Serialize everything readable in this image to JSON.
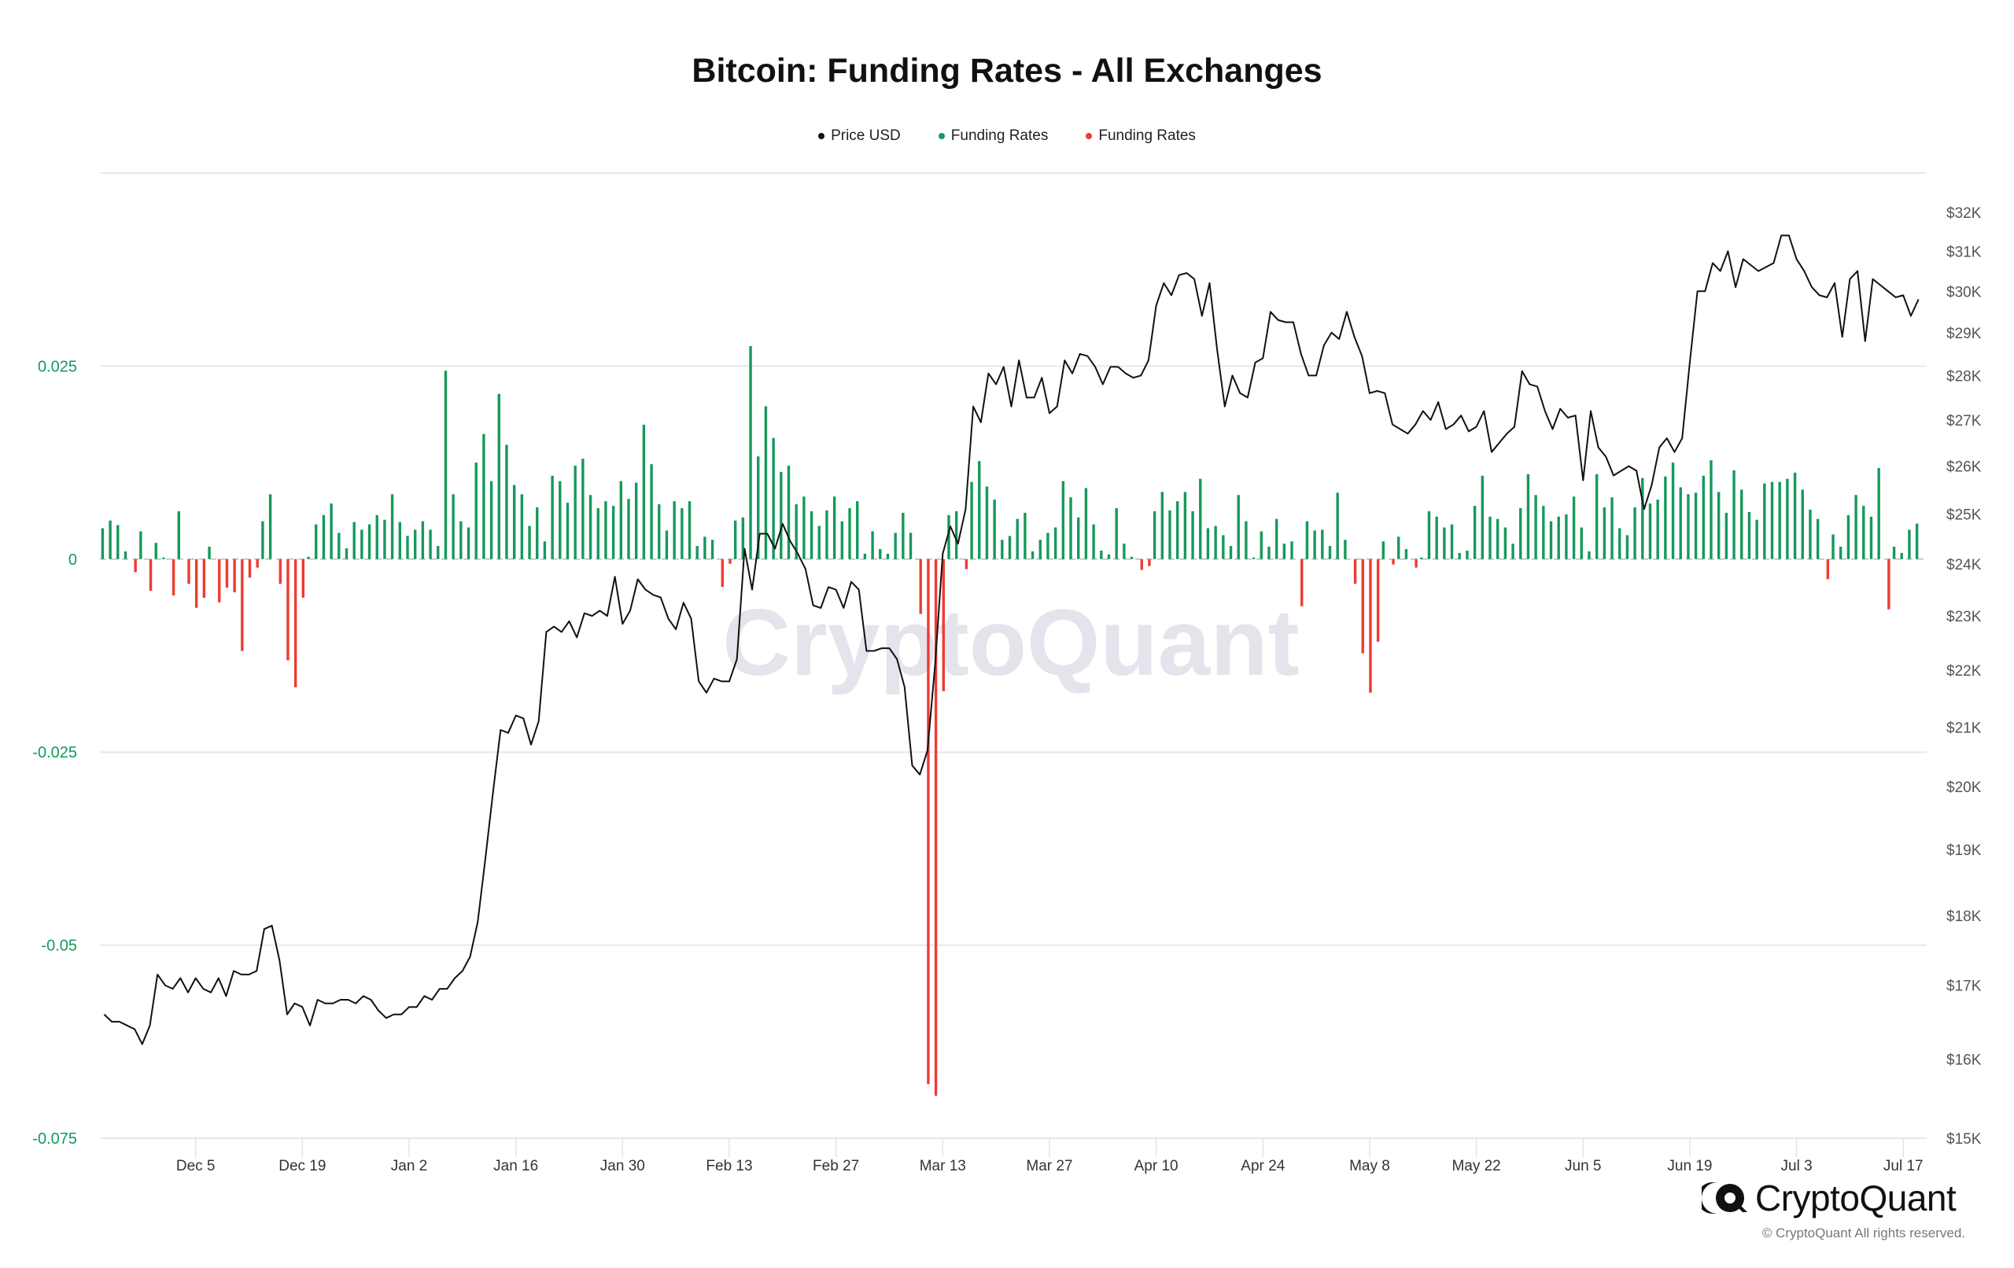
{
  "chart_data": {
    "type": "bar+line",
    "title": "Bitcoin: Funding Rates - All Exchanges",
    "legend": [
      {
        "label": "Price USD",
        "color": "#111111"
      },
      {
        "label": "Funding Rates",
        "color": "#16995b"
      },
      {
        "label": "Funding Rates",
        "color": "#ef3b31"
      }
    ],
    "legend_position": "top-center",
    "y_left": {
      "range": [
        -0.075,
        0.05
      ],
      "ticks": [
        0.025,
        0,
        -0.025,
        -0.05,
        -0.075
      ],
      "tick_labels": [
        "0.025",
        "0",
        "-0.025",
        "-0.05",
        "-0.075"
      ]
    },
    "y_right": {
      "scale": "log",
      "range": [
        15,
        33.5
      ],
      "ticks": [
        15,
        16,
        17,
        18,
        19,
        20,
        21,
        22,
        23,
        24,
        25,
        26,
        27,
        28,
        29,
        30,
        31,
        32
      ],
      "tick_labels": [
        "$15K",
        "$16K",
        "$17K",
        "$18K",
        "$19K",
        "$20K",
        "$21K",
        "$22K",
        "$23K",
        "$24K",
        "$25K",
        "$26K",
        "$27K",
        "$28K",
        "$29K",
        "$30K",
        "$31K",
        "$32K"
      ]
    },
    "x": {
      "unit": "day index",
      "range": [
        0,
        239.5
      ],
      "ticks": [
        {
          "label": "Dec 5",
          "day": 12
        },
        {
          "label": "Dec 19",
          "day": 26
        },
        {
          "label": "Jan 2",
          "day": 40
        },
        {
          "label": "Jan 16",
          "day": 54
        },
        {
          "label": "Jan 30",
          "day": 68
        },
        {
          "label": "Feb 13",
          "day": 82
        },
        {
          "label": "Feb 27",
          "day": 96
        },
        {
          "label": "Mar 13",
          "day": 110
        },
        {
          "label": "Mar 27",
          "day": 124
        },
        {
          "label": "Apr 10",
          "day": 138
        },
        {
          "label": "Apr 24",
          "day": 152
        },
        {
          "label": "May 8",
          "day": 166
        },
        {
          "label": "May 22",
          "day": 180
        },
        {
          "label": "Jun 5",
          "day": 194
        },
        {
          "label": "Jun 19",
          "day": 208
        },
        {
          "label": "Jul 3",
          "day": 222
        },
        {
          "label": "Jul 17",
          "day": 236
        }
      ]
    },
    "grid": true,
    "funding_rates": [
      0.004,
      0.005,
      0.0044,
      0.001,
      -0.0017,
      0.0036,
      -0.0041,
      0.0021,
      0.0002,
      -0.0047,
      0.0062,
      -0.0032,
      -0.0063,
      -0.005,
      0.0016,
      -0.0056,
      -0.0037,
      -0.0043,
      -0.0119,
      -0.0024,
      -0.0011,
      0.0049,
      0.0084,
      -0.0032,
      -0.0131,
      -0.0166,
      -0.005,
      0.0003,
      0.0045,
      0.0057,
      0.0072,
      0.0034,
      0.0014,
      0.0048,
      0.0038,
      0.0045,
      0.0057,
      0.0051,
      0.0084,
      0.0048,
      0.003,
      0.0038,
      0.0049,
      0.0038,
      0.0017,
      0.0244,
      0.0084,
      0.0049,
      0.0041,
      0.0125,
      0.0162,
      0.0101,
      0.0214,
      0.0148,
      0.0096,
      0.0084,
      0.0043,
      0.0067,
      0.0023,
      0.0108,
      0.0101,
      0.0073,
      0.0121,
      0.013,
      0.0083,
      0.0066,
      0.0075,
      0.0069,
      0.0101,
      0.0078,
      0.0099,
      0.0174,
      0.0123,
      0.0071,
      0.0037,
      0.0075,
      0.0066,
      0.0075,
      0.0017,
      0.0029,
      0.0025,
      -0.0036,
      -0.0006,
      0.005,
      0.0054,
      0.0276,
      0.0133,
      0.0198,
      0.0157,
      0.0113,
      0.0121,
      0.0071,
      0.0081,
      0.0062,
      0.0043,
      0.0063,
      0.0081,
      0.0049,
      0.0066,
      0.0075,
      0.0007,
      0.0036,
      0.0013,
      0.0007,
      0.0034,
      0.006,
      0.0034,
      -0.0071,
      -0.068,
      -0.0695,
      -0.0171,
      0.0057,
      0.0062,
      -0.0013,
      0.01,
      0.0127,
      0.0094,
      0.0077,
      0.0025,
      0.003,
      0.0052,
      0.006,
      0.001,
      0.0025,
      0.0034,
      0.0041,
      0.0101,
      0.008,
      0.0054,
      0.0092,
      0.0045,
      0.0011,
      0.0006,
      0.0066,
      0.002,
      0.0003,
      -0.0014,
      -0.0009,
      0.0062,
      0.0087,
      0.0063,
      0.0075,
      0.0087,
      0.0062,
      0.0104,
      0.004,
      0.0043,
      0.0031,
      0.0017,
      0.0083,
      0.0049,
      0.0002,
      0.0036,
      0.0016,
      0.0052,
      0.002,
      0.0023,
      -0.0061,
      0.0049,
      0.0037,
      0.0038,
      0.0017,
      0.0086,
      0.0025,
      -0.0032,
      -0.0122,
      -0.0173,
      -0.0107,
      0.0023,
      -0.0007,
      0.0029,
      0.0013,
      -0.0011,
      0.0002,
      0.0062,
      0.0055,
      0.0041,
      0.0045,
      0.0008,
      0.0011,
      0.0069,
      0.0108,
      0.0055,
      0.0052,
      0.0041,
      0.002,
      0.0066,
      0.011,
      0.0083,
      0.0069,
      0.0049,
      0.0055,
      0.0058,
      0.0081,
      0.0041,
      0.001,
      0.011,
      0.0067,
      0.008,
      0.004,
      0.0031,
      0.0067,
      0.0105,
      0.0072,
      0.0077,
      0.0107,
      0.0125,
      0.0093,
      0.0084,
      0.0086,
      0.0108,
      0.0128,
      0.0087,
      0.006,
      0.0115,
      0.009,
      0.0061,
      0.0051,
      0.0098,
      0.01,
      0.01,
      0.0104,
      0.0112,
      0.009,
      0.0064,
      0.0052,
      -0.0026,
      0.0032,
      0.0016,
      0.0057,
      0.0083,
      0.0069,
      0.0055,
      0.0118,
      -0.0065,
      0.0016,
      0.0008,
      0.0038,
      0.0046
    ],
    "price_usd_k": [
      16.6,
      16.5,
      16.5,
      16.45,
      16.4,
      16.2,
      16.45,
      17.15,
      17.0,
      16.95,
      17.1,
      16.9,
      17.1,
      16.95,
      16.9,
      17.1,
      16.85,
      17.2,
      17.15,
      17.15,
      17.2,
      17.8,
      17.85,
      17.35,
      16.6,
      16.75,
      16.7,
      16.45,
      16.8,
      16.75,
      16.75,
      16.8,
      16.8,
      16.75,
      16.85,
      16.8,
      16.65,
      16.55,
      16.6,
      16.6,
      16.7,
      16.7,
      16.85,
      16.8,
      16.95,
      16.95,
      17.1,
      17.2,
      17.4,
      17.9,
      18.85,
      19.9,
      20.95,
      20.9,
      21.2,
      21.15,
      20.7,
      21.1,
      22.7,
      22.8,
      22.7,
      22.9,
      22.6,
      23.05,
      23.0,
      23.1,
      23.0,
      23.75,
      22.85,
      23.1,
      23.7,
      23.5,
      23.4,
      23.35,
      22.95,
      22.75,
      23.25,
      22.95,
      21.8,
      21.6,
      21.85,
      21.8,
      21.8,
      22.2,
      24.3,
      23.5,
      24.6,
      24.6,
      24.3,
      24.8,
      24.45,
      24.2,
      23.9,
      23.2,
      23.15,
      23.55,
      23.5,
      23.15,
      23.65,
      23.5,
      22.35,
      22.35,
      22.4,
      22.4,
      22.2,
      21.7,
      20.35,
      20.2,
      20.6,
      22.1,
      24.2,
      24.75,
      24.4,
      25.1,
      27.3,
      26.95,
      28.05,
      27.8,
      28.2,
      27.3,
      28.35,
      27.5,
      27.5,
      27.95,
      27.15,
      27.3,
      28.35,
      28.05,
      28.5,
      28.45,
      28.2,
      27.8,
      28.2,
      28.2,
      28.05,
      27.95,
      28.0,
      28.35,
      29.65,
      30.2,
      29.9,
      30.4,
      30.45,
      30.3,
      29.4,
      30.2,
      28.6,
      27.3,
      28.0,
      27.6,
      27.5,
      28.3,
      28.4,
      29.5,
      29.3,
      29.25,
      29.25,
      28.5,
      28.0,
      28.0,
      28.7,
      29.0,
      28.85,
      29.5,
      28.9,
      28.45,
      27.6,
      27.65,
      27.6,
      26.9,
      26.8,
      26.7,
      26.9,
      27.2,
      27.0,
      27.4,
      26.8,
      26.9,
      27.1,
      26.75,
      26.85,
      27.2,
      26.3,
      26.5,
      26.7,
      26.85,
      28.1,
      27.8,
      27.75,
      27.2,
      26.8,
      27.25,
      27.05,
      27.1,
      25.7,
      27.2,
      26.4,
      26.2,
      25.8,
      25.9,
      26.0,
      25.9,
      25.1,
      25.6,
      26.4,
      26.6,
      26.3,
      26.6,
      28.3,
      30.0,
      30.0,
      30.7,
      30.5,
      31.0,
      30.1,
      30.8,
      30.65,
      30.5,
      30.6,
      30.7,
      31.4,
      31.4,
      30.8,
      30.5,
      30.1,
      29.9,
      29.85,
      30.2,
      28.9,
      30.3,
      30.5,
      28.8,
      30.3,
      30.15,
      30.0,
      29.85,
      29.9,
      29.4,
      29.8
    ]
  },
  "watermark": "CryptoQuant",
  "brand": {
    "name": "CryptoQuant",
    "copyright": "© CryptoQuant All rights reserved."
  },
  "colors": {
    "green": "#16995b",
    "red": "#ef3b31",
    "price": "#111111",
    "grid": "#e6e6ee",
    "axis_left": "#16995b",
    "axis_right": "#555555"
  }
}
